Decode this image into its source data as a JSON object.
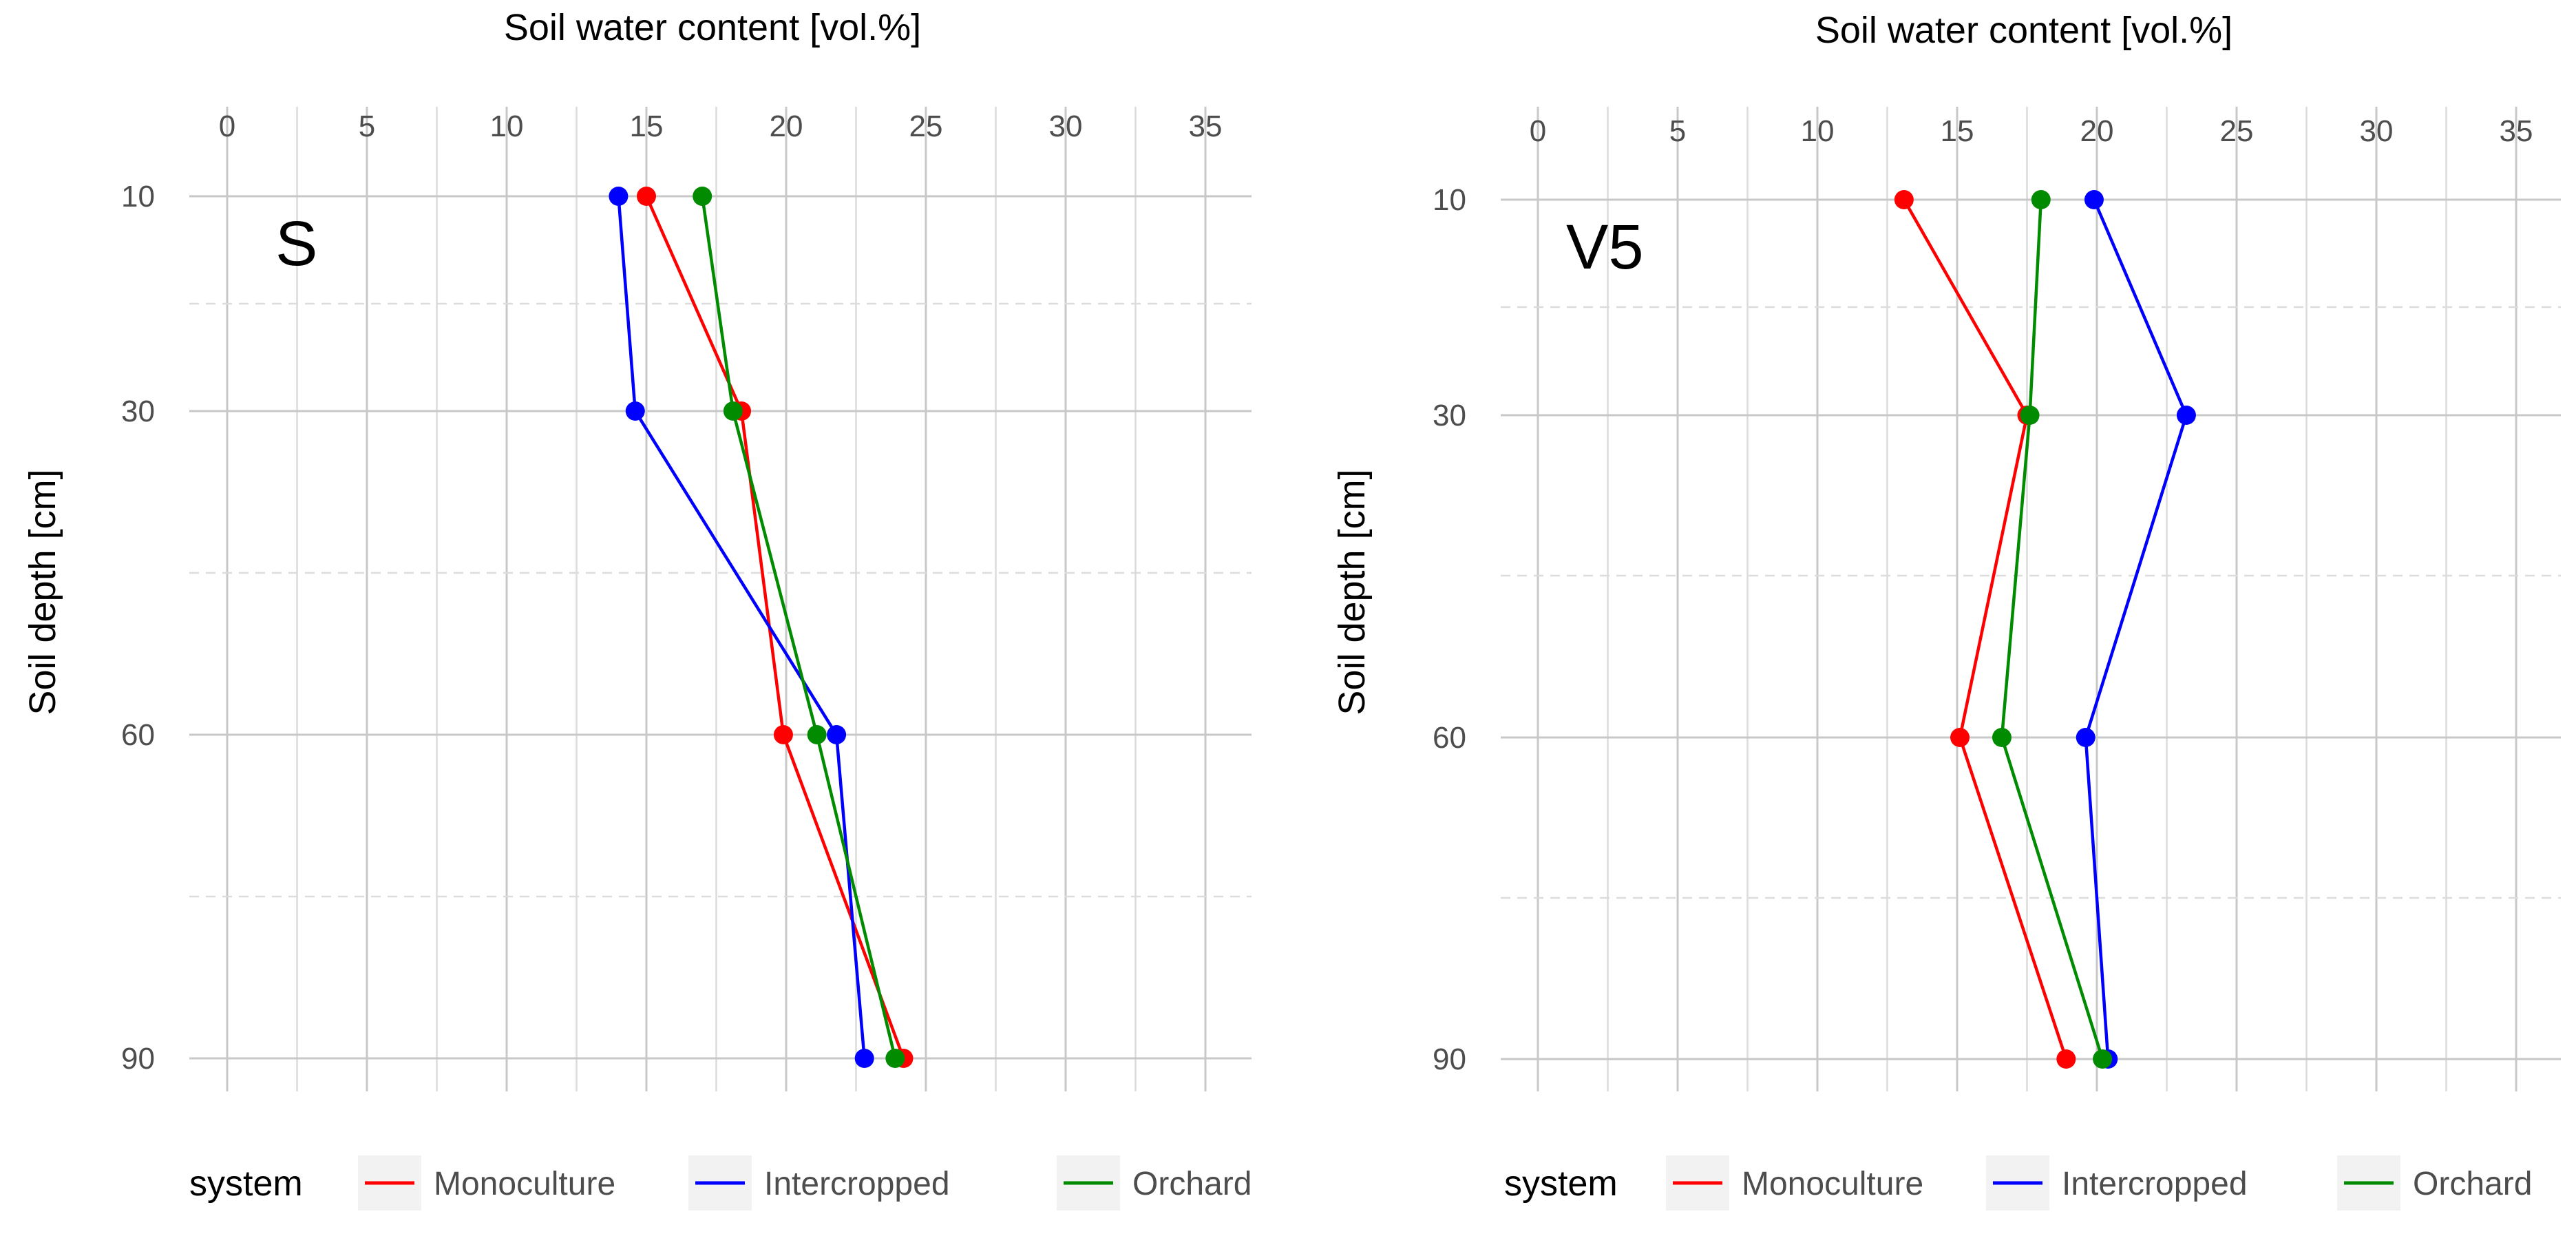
{
  "chart_data": [
    {
      "type": "line",
      "panel_label": "S",
      "xlabel": "Soil water content [vol.%]",
      "ylabel": "Soil depth [cm]",
      "xlim": [
        -2.5,
        36.5
      ],
      "x_ticks": [
        "0",
        "5",
        "10",
        "15",
        "20",
        "25",
        "30",
        "35"
      ],
      "y_ticks": [
        "10",
        "30",
        "60",
        "90"
      ],
      "y_categories": [
        10,
        30,
        60,
        90
      ],
      "series": [
        {
          "name": "Monoculture",
          "color": "#ff0000",
          "depths": [
            10,
            30,
            60,
            90
          ],
          "values": [
            15.0,
            18.4,
            19.9,
            24.2
          ]
        },
        {
          "name": "Intercropped",
          "color": "#0000ff",
          "depths": [
            10,
            30,
            60,
            90
          ],
          "values": [
            14.0,
            14.6,
            21.8,
            22.8
          ]
        },
        {
          "name": "Orchard",
          "color": "#008b00",
          "depths": [
            10,
            30,
            60,
            90
          ],
          "values": [
            17.0,
            18.1,
            21.1,
            23.9
          ]
        }
      ],
      "legend": {
        "title": "system",
        "position": "bottom",
        "entries": [
          "Monoculture",
          "Intercropped",
          "Orchard"
        ]
      }
    },
    {
      "type": "line",
      "panel_label": "V5",
      "xlabel": "Soil water content [vol.%]",
      "ylabel": "Soil depth [cm]",
      "xlim": [
        -2.5,
        36.5
      ],
      "x_ticks": [
        "0",
        "5",
        "10",
        "15",
        "20",
        "25",
        "30",
        "35"
      ],
      "y_ticks": [
        "10",
        "30",
        "60",
        "90"
      ],
      "y_categories": [
        10,
        30,
        60,
        90
      ],
      "series": [
        {
          "name": "Monoculture",
          "color": "#ff0000",
          "depths": [
            10,
            30,
            60,
            90
          ],
          "values": [
            13.1,
            17.5,
            15.1,
            18.9
          ]
        },
        {
          "name": "Intercropped",
          "color": "#0000ff",
          "depths": [
            10,
            30,
            60,
            90
          ],
          "values": [
            19.9,
            23.2,
            19.6,
            20.4
          ]
        },
        {
          "name": "Orchard",
          "color": "#008b00",
          "depths": [
            10,
            30,
            60,
            90
          ],
          "values": [
            18.0,
            17.6,
            16.6,
            20.2
          ]
        }
      ],
      "legend": {
        "title": "system",
        "position": "bottom",
        "entries": [
          "Monoculture",
          "Intercropped",
          "Orchard"
        ]
      }
    }
  ]
}
